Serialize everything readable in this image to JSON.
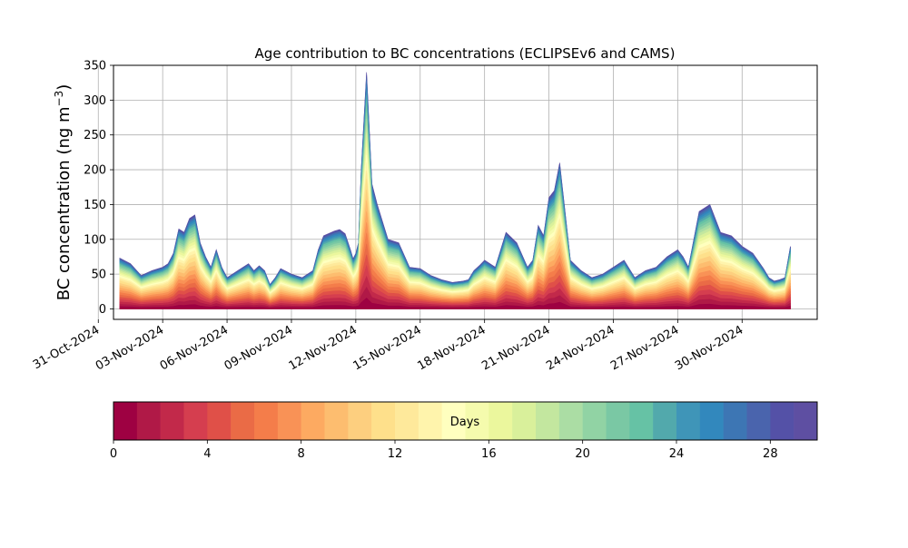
{
  "chart_data": {
    "type": "area",
    "title": "Age contribution to BC concentrations (ECLIPSEv6 and CAMS)",
    "ylabel": "BC concentration (ng m",
    "ylabel_superscript": "−3",
    "ylabel_tail": ")",
    "ylim": [
      -15,
      350
    ],
    "y_ticks": [
      0,
      50,
      100,
      150,
      200,
      250,
      300,
      350
    ],
    "xlim": [
      "2024-10-31T17:00",
      "2024-12-03T12:00"
    ],
    "x_ticks": [
      "2024-10-31",
      "2024-11-03",
      "2024-11-06",
      "2024-11-09",
      "2024-11-12",
      "2024-11-15",
      "2024-11-18",
      "2024-11-21",
      "2024-11-24",
      "2024-11-27",
      "2024-11-30"
    ],
    "x_tick_labels": [
      "31-Oct-2024",
      "03-Nov-2024",
      "06-Nov-2024",
      "09-Nov-2024",
      "12-Nov-2024",
      "15-Nov-2024",
      "18-Nov-2024",
      "21-Nov-2024",
      "24-Nov-2024",
      "27-Nov-2024",
      "30-Nov-2024"
    ],
    "grid": true,
    "stacking": "cumulative by age (0–30 days), youngest at bottom",
    "colormap": "Spectral",
    "colorbar": {
      "label": "Days",
      "range": [
        0,
        30
      ],
      "bins": 30,
      "ticks": [
        0,
        4,
        8,
        12,
        16,
        20,
        24,
        28
      ],
      "colors": [
        "#9e0142",
        "#b01947",
        "#c2294a",
        "#d53e4f",
        "#e05048",
        "#ea6b46",
        "#f47d4a",
        "#f99256",
        "#fdaa61",
        "#fdbd6f",
        "#fdcf7f",
        "#fee08b",
        "#fee99b",
        "#fff4ac",
        "#ffffbf",
        "#f5fbad",
        "#ebf79d",
        "#d9f09b",
        "#c3e79f",
        "#abdda4",
        "#91d3a4",
        "#7ac8a4",
        "#66c2a5",
        "#52a9ac",
        "#3f95b8",
        "#3288bd",
        "#3d76b4",
        "#4a64ad",
        "#5451a7",
        "#5e4fa2"
      ]
    },
    "x": [
      "2024-11-01T00:00",
      "2024-11-01T12:00",
      "2024-11-02T00:00",
      "2024-11-02T12:00",
      "2024-11-03T00:00",
      "2024-11-03T06:00",
      "2024-11-03T12:00",
      "2024-11-03T18:00",
      "2024-11-04T00:00",
      "2024-11-04T06:00",
      "2024-11-04T12:00",
      "2024-11-04T18:00",
      "2024-11-05T00:00",
      "2024-11-05T06:00",
      "2024-11-05T12:00",
      "2024-11-05T18:00",
      "2024-11-06T00:00",
      "2024-11-06T12:00",
      "2024-11-07T00:00",
      "2024-11-07T06:00",
      "2024-11-07T12:00",
      "2024-11-07T18:00",
      "2024-11-08T00:00",
      "2024-11-08T06:00",
      "2024-11-08T12:00",
      "2024-11-09T00:00",
      "2024-11-09T12:00",
      "2024-11-10T00:00",
      "2024-11-10T06:00",
      "2024-11-10T12:00",
      "2024-11-11T00:00",
      "2024-11-11T06:00",
      "2024-11-11T12:00",
      "2024-11-11T18:00",
      "2024-11-11T21:00",
      "2024-11-12T00:00",
      "2024-11-12T03:00",
      "2024-11-12T06:00",
      "2024-11-12T12:00",
      "2024-11-12T18:00",
      "2024-11-13T00:00",
      "2024-11-13T12:00",
      "2024-11-14T00:00",
      "2024-11-14T12:00",
      "2024-11-15T00:00",
      "2024-11-15T12:00",
      "2024-11-16T00:00",
      "2024-11-16T12:00",
      "2024-11-17T00:00",
      "2024-11-17T06:00",
      "2024-11-17T12:00",
      "2024-11-17T18:00",
      "2024-11-18T00:00",
      "2024-11-18T12:00",
      "2024-11-19T00:00",
      "2024-11-19T12:00",
      "2024-11-20T00:00",
      "2024-11-20T06:00",
      "2024-11-20T12:00",
      "2024-11-20T18:00",
      "2024-11-21T00:00",
      "2024-11-21T06:00",
      "2024-11-21T12:00",
      "2024-11-22T00:00",
      "2024-11-22T12:00",
      "2024-11-23T00:00",
      "2024-11-23T12:00",
      "2024-11-24T00:00",
      "2024-11-24T12:00",
      "2024-11-25T00:00",
      "2024-11-25T12:00",
      "2024-11-26T00:00",
      "2024-11-26T12:00",
      "2024-11-27T00:00",
      "2024-11-27T06:00",
      "2024-11-27T12:00",
      "2024-11-28T00:00",
      "2024-11-28T12:00",
      "2024-11-29T00:00",
      "2024-11-29T12:00",
      "2024-11-30T00:00",
      "2024-11-30T12:00",
      "2024-12-01T00:00",
      "2024-12-01T06:00",
      "2024-12-01T12:00",
      "2024-12-01T18:00",
      "2024-12-02T00:00",
      "2024-12-02T06:00"
    ],
    "total": [
      73,
      65,
      48,
      55,
      60,
      65,
      80,
      115,
      110,
      130,
      135,
      95,
      75,
      60,
      85,
      60,
      45,
      55,
      65,
      55,
      62,
      55,
      35,
      45,
      58,
      50,
      45,
      55,
      85,
      105,
      112,
      114,
      108,
      85,
      72,
      80,
      95,
      200,
      340,
      180,
      150,
      100,
      95,
      60,
      58,
      48,
      42,
      38,
      40,
      42,
      55,
      62,
      70,
      60,
      110,
      95,
      60,
      70,
      120,
      105,
      160,
      170,
      210,
      70,
      55,
      45,
      50,
      60,
      70,
      45,
      55,
      60,
      75,
      85,
      75,
      60,
      140,
      150,
      110,
      105,
      90,
      80,
      58,
      45,
      40,
      42,
      45,
      90
    ],
    "young_fraction": 0.55
  }
}
